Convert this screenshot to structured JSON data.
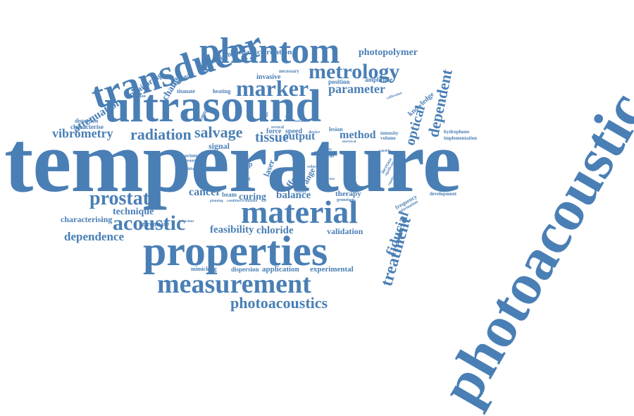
{
  "color": "#4a7fb5",
  "words": [
    "temperature",
    "photoacoustic",
    "properties",
    "ultrasound",
    "transducer",
    "phantom",
    "material",
    "measurement",
    "metrology",
    "marker",
    "acoustic",
    "prostate",
    "treatment",
    "dependent",
    "optical",
    "fiducial",
    "photoacoustics",
    "radiation",
    "salvage",
    "tissue",
    "vibrometry",
    "attenuation",
    "parameter",
    "photopolymer",
    "dependence",
    "balance",
    "cancer",
    "characterisation",
    "feasibility",
    "chloride",
    "validation",
    "technique",
    "characterising",
    "output",
    "method",
    "curing",
    "application",
    "experimental",
    "zirconate",
    "dispersion",
    "mimicking",
    "change",
    "monitoring",
    "gruneisen",
    "knowledge",
    "signal",
    "effect",
    "range",
    "laser",
    "therapy",
    "force",
    "speed",
    "lesion",
    "invasive",
    "heating",
    "titanate",
    "position",
    "amplitude",
    "necessary",
    "characterise",
    "distortion",
    "sample",
    "conversion",
    "efficiency",
    "sensitivity",
    "hydrophone",
    "implementation",
    "intensity",
    "volume",
    "frequency",
    "development",
    "information",
    "increase",
    "significant",
    "beam",
    "result",
    "time",
    "pvcp",
    "study",
    "several",
    "printed",
    "electrical",
    "calibration",
    "planning",
    "condition",
    "evaluation",
    "velocity",
    "device",
    "practice",
    "gruneisen",
    "behaviour",
    "diffuse",
    "capable",
    "copolymer",
    "mapping",
    "delivery",
    "concept",
    "ablation",
    "surface",
    "single"
  ]
}
